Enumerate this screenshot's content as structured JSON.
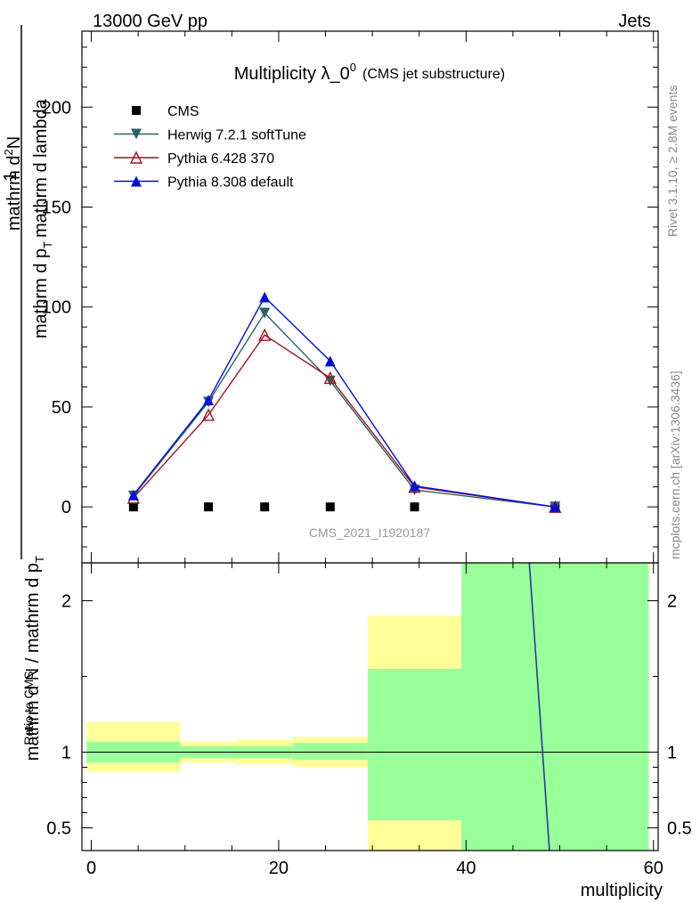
{
  "header": {
    "left": "13000 GeV pp",
    "right": "Jets"
  },
  "side_labels": {
    "rivet": "Rivet 3.1.10, ≥ 2.8M events",
    "mcplots": "mcplots.cern.ch [arXiv:1306.3436]"
  },
  "chart_data": [
    {
      "type": "line",
      "title": "Multiplicity λ_0",
      "title_superscript": "0",
      "subtitle": "(CMS jet substructure)",
      "watermark": "CMS_2021_I1920187",
      "ylabel_numerator": "mathrm d²N",
      "ylabel_numerator_base": "mathrm d",
      "ylabel_numerator_sup": "2",
      "ylabel_numerator_rest": "N",
      "ylabel_denominator": "mathrm d p_T mathrm d lambda",
      "ylabel_denominator_main": "mathrm d p",
      "ylabel_denominator_sub": "T",
      "ylabel_denominator_rest": "mathrm d lambda",
      "ylabel_prefix": "1",
      "ylabel_prefix_full": "mathrm d N / mathrm d p_T",
      "ylabel_prefix_main": "mathrm d N / mathrm d p",
      "ylabel_prefix_sub": "T",
      "xlim": [
        -1,
        60.5
      ],
      "ylim": [
        -28,
        238
      ],
      "yticks": [
        0,
        50,
        100,
        150,
        200
      ],
      "ytick_labels": [
        "0",
        "50",
        "100",
        "150",
        "200"
      ],
      "legend_position": "top-left",
      "series": [
        {
          "name": "CMS",
          "color": "#000000",
          "marker": "square",
          "x": [
            4.5,
            12.5,
            18.5,
            25.5,
            34.5,
            49.5
          ],
          "y": [
            0.0,
            0.0,
            0.0,
            0.0,
            0.0,
            0.0
          ]
        },
        {
          "name": "Herwig 7.2.1 softTune",
          "color": "#2a6365",
          "marker": "triangle-down",
          "x": [
            4.5,
            12.5,
            18.5,
            25.5,
            34.5,
            49.5
          ],
          "y": [
            5.5,
            52.5,
            97.0,
            63.0,
            8.5,
            0.0
          ]
        },
        {
          "name": "Pythia 6.428 370",
          "color": "#a0141e",
          "marker": "triangle-up-open",
          "x": [
            4.5,
            12.5,
            18.5,
            25.5,
            34.5,
            49.5
          ],
          "y": [
            4.5,
            46.0,
            86.0,
            64.5,
            10.0,
            0.0
          ]
        },
        {
          "name": "Pythia 8.308 default",
          "color": "#0010d8",
          "marker": "triangle-up",
          "x": [
            4.5,
            12.5,
            18.5,
            25.5,
            34.5,
            49.5
          ],
          "y": [
            6.0,
            53.5,
            105.0,
            73.0,
            10.5,
            0.0
          ]
        }
      ]
    },
    {
      "type": "area",
      "ylabel": "Ratio to CMS",
      "xlabel": "multiplicity",
      "xlim": [
        -1,
        60.5
      ],
      "ylim": [
        0.35,
        2.25
      ],
      "xticks": [
        0,
        20,
        40,
        60
      ],
      "xtick_labels": [
        "0",
        "20",
        "40",
        "60"
      ],
      "yticks": [
        0.5,
        1,
        2
      ],
      "ytick_labels": [
        "0.5",
        "1",
        "2"
      ],
      "reference_line": 1,
      "bands": [
        {
          "x0": -0.5,
          "x1": 9.5,
          "outer": [
            0.87,
            1.2
          ],
          "inner": [
            0.93,
            1.07
          ]
        },
        {
          "x0": 9.5,
          "x1": 15.5,
          "outer": [
            0.93,
            1.07
          ],
          "inner": [
            0.96,
            1.04
          ]
        },
        {
          "x0": 15.5,
          "x1": 21.5,
          "outer": [
            0.92,
            1.08
          ],
          "inner": [
            0.96,
            1.04
          ]
        },
        {
          "x0": 21.5,
          "x1": 29.5,
          "outer": [
            0.9,
            1.1
          ],
          "inner": [
            0.95,
            1.06
          ]
        },
        {
          "x0": 29.5,
          "x1": 39.5,
          "outer": [
            0.1,
            1.9
          ],
          "inner": [
            0.55,
            1.55
          ]
        },
        {
          "x0": 39.5,
          "x1": 59.5,
          "outer": [
            0.0,
            5.0
          ],
          "inner": [
            0.0,
            5.0
          ]
        }
      ],
      "outer_color": "#ffff99",
      "inner_color": "#99ff99",
      "ratio_line": {
        "color": "#2a3aa0",
        "x": [
          45.9,
          48.9
        ],
        "y": [
          3.0,
          0.35
        ]
      }
    }
  ]
}
